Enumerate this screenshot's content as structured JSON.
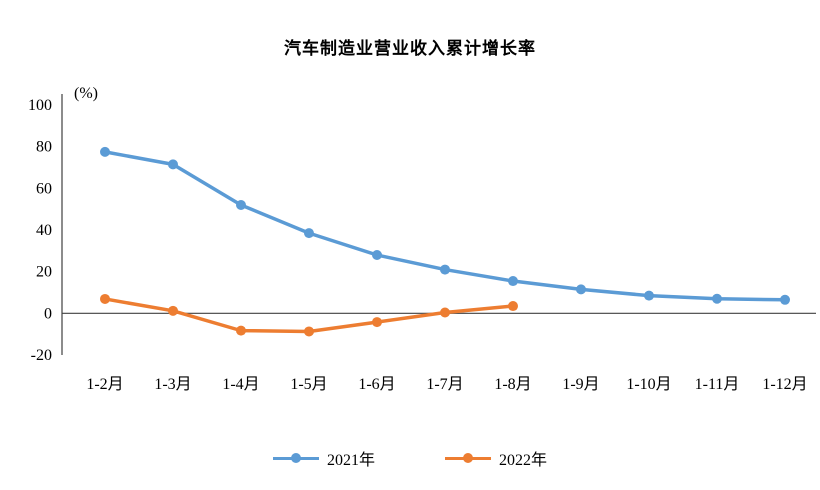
{
  "chart_data": {
    "type": "line",
    "title": "汽车制造业营业收入累计增长率",
    "y_unit_label": "(%)",
    "categories": [
      "1-2月",
      "1-3月",
      "1-4月",
      "1-5月",
      "1-6月",
      "1-7月",
      "1-8月",
      "1-9月",
      "1-10月",
      "1-11月",
      "1-12月"
    ],
    "y_ticks": [
      100,
      80,
      60,
      40,
      20,
      0,
      -20
    ],
    "ylim": [
      -20,
      100
    ],
    "grid": false,
    "legend_position": "bottom",
    "series": [
      {
        "name": "2021年",
        "color": "#5B9BD5",
        "values": [
          77.5,
          71.5,
          52,
          38.5,
          28,
          21,
          15.5,
          11.5,
          8.5,
          7,
          6.5
        ]
      },
      {
        "name": "2022年",
        "color": "#ED7D31",
        "values": [
          6.9,
          1.2,
          -8.3,
          -8.7,
          -4.2,
          0.4,
          3.5
        ]
      }
    ]
  }
}
